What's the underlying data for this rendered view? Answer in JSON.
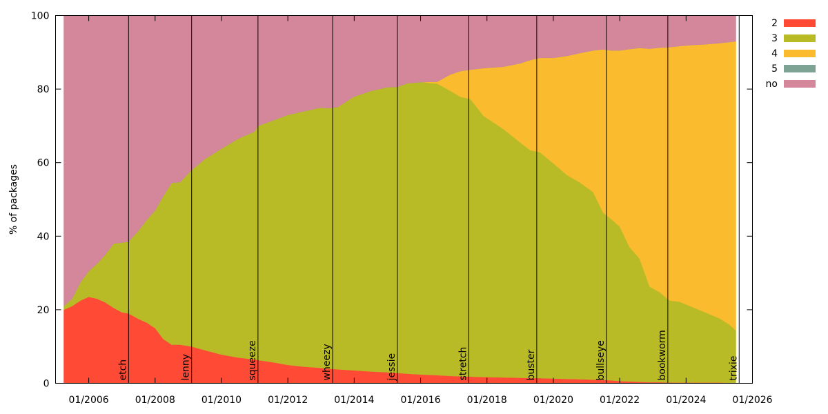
{
  "chart_data": {
    "type": "area",
    "stacked": true,
    "ylabel": "% of packages",
    "ylim": [
      0,
      100
    ],
    "yticks": [
      0,
      20,
      40,
      60,
      80,
      100
    ],
    "xlim": [
      2005.0,
      2026.0
    ],
    "xticks": [
      {
        "x": 2006,
        "label": "01/2006"
      },
      {
        "x": 2008,
        "label": "01/2008"
      },
      {
        "x": 2010,
        "label": "01/2010"
      },
      {
        "x": 2012,
        "label": "01/2012"
      },
      {
        "x": 2014,
        "label": "01/2014"
      },
      {
        "x": 2016,
        "label": "01/2016"
      },
      {
        "x": 2018,
        "label": "01/2018"
      },
      {
        "x": 2020,
        "label": "01/2020"
      },
      {
        "x": 2022,
        "label": "01/2022"
      },
      {
        "x": 2024,
        "label": "01/2024"
      },
      {
        "x": 2026,
        "label": "01/2026"
      }
    ],
    "x": [
      2005.25,
      2005.5,
      2005.75,
      2006.0,
      2006.25,
      2006.5,
      2006.75,
      2007.0,
      2007.2,
      2007.5,
      2007.75,
      2008.0,
      2008.25,
      2008.5,
      2008.75,
      2009.1,
      2009.5,
      2010.0,
      2010.5,
      2011.0,
      2011.1,
      2011.5,
      2012.0,
      2012.5,
      2013.0,
      2013.2,
      2013.5,
      2014.0,
      2014.5,
      2015.0,
      2015.3,
      2015.6,
      2016.0,
      2016.5,
      2016.9,
      2017.2,
      2017.5,
      2017.9,
      2018.5,
      2019.0,
      2019.3,
      2019.6,
      2020.0,
      2020.4,
      2020.8,
      2021.2,
      2021.5,
      2021.75,
      2022.0,
      2022.3,
      2022.6,
      2022.9,
      2023.2,
      2023.5,
      2023.8,
      2024.2,
      2024.6,
      2025.0,
      2025.3,
      2025.5
    ],
    "series": [
      {
        "name": "2",
        "color": "#ff4a35",
        "values": [
          20,
          21,
          22.5,
          23.5,
          23,
          22,
          20.5,
          19.3,
          19,
          17.5,
          16.5,
          15,
          12,
          10.5,
          10.5,
          10,
          9,
          7.8,
          7,
          6.5,
          6.3,
          5.8,
          5,
          4.5,
          4.2,
          4,
          3.8,
          3.5,
          3.2,
          3,
          2.8,
          2.6,
          2.4,
          2.2,
          2,
          1.9,
          1.8,
          1.7,
          1.6,
          1.5,
          1.4,
          1.4,
          1.3,
          1.2,
          1.1,
          1,
          0.9,
          0.8,
          0.6,
          0.5,
          0.4,
          0.3,
          0.3,
          0.2,
          0.2,
          0.2,
          0.2,
          0.2,
          0.1,
          0.1
        ]
      },
      {
        "name": "3",
        "color": "#b8ba26",
        "values": [
          1,
          2,
          5,
          7,
          9.5,
          13,
          17.5,
          19,
          19.5,
          24,
          28,
          32,
          39,
          44,
          44.2,
          48,
          52,
          56,
          59.5,
          62,
          63.7,
          65.5,
          68,
          69.5,
          70.8,
          70.8,
          71.3,
          74.5,
          76.3,
          77.5,
          77.8,
          79,
          79.5,
          79.3,
          77.5,
          76,
          75.5,
          71,
          67.5,
          64,
          62,
          61.4,
          58.5,
          55.5,
          53.5,
          51,
          45.5,
          43.8,
          42,
          36.5,
          33.5,
          26,
          24.5,
          22.3,
          22,
          20.5,
          19,
          17.5,
          15.9,
          14.3
        ]
      },
      {
        "name": "4",
        "color": "#fabb2e",
        "values": [
          0,
          0,
          0,
          0,
          0,
          0,
          0,
          0,
          0,
          0,
          0,
          0,
          0,
          0,
          0,
          0,
          0,
          0,
          0,
          0,
          0,
          0,
          0,
          0,
          0,
          0,
          0,
          0,
          0,
          0,
          0,
          0,
          0,
          0.5,
          4.5,
          7,
          8,
          13,
          17,
          21.5,
          24.5,
          25.7,
          28.7,
          32.3,
          35.2,
          38.5,
          44.4,
          45.9,
          47.9,
          53.9,
          57.3,
          64.7,
          66.5,
          68.9,
          69.5,
          71.3,
          73,
          74.8,
          76.8,
          78.6
        ]
      },
      {
        "name": "5",
        "color": "#7da394",
        "values": [
          0,
          0,
          0,
          0,
          0,
          0,
          0,
          0,
          0,
          0,
          0,
          0,
          0,
          0,
          0,
          0,
          0,
          0,
          0,
          0,
          0,
          0,
          0,
          0,
          0,
          0,
          0,
          0,
          0,
          0,
          0,
          0,
          0,
          0,
          0,
          0,
          0,
          0,
          0,
          0,
          0,
          0,
          0,
          0,
          0,
          0,
          0,
          0,
          0,
          0,
          0,
          0,
          0,
          0,
          0,
          0,
          0,
          0,
          0,
          0
        ]
      },
      {
        "name": "no",
        "color": "#d4869a",
        "values": [
          79,
          77,
          72.5,
          69.5,
          67.5,
          65,
          62,
          61.7,
          61.5,
          58.5,
          55.5,
          53,
          49,
          45.5,
          45.3,
          42,
          39,
          36.2,
          33.5,
          31.5,
          30,
          28.7,
          27,
          26,
          25,
          25.2,
          24.9,
          22,
          20.5,
          19.5,
          19.4,
          18.4,
          18.1,
          18,
          16,
          15.1,
          14.7,
          14.3,
          13.9,
          13,
          12.1,
          11.5,
          11.5,
          11,
          10.2,
          9.5,
          9.2,
          9.5,
          9.5,
          9.1,
          8.8,
          9,
          8.7,
          8.6,
          8.3,
          8,
          7.8,
          7.5,
          7.2,
          7
        ]
      }
    ],
    "releases": [
      {
        "name": "etch",
        "x": 2007.2
      },
      {
        "name": "lenny",
        "x": 2009.1
      },
      {
        "name": "squeeze",
        "x": 2011.1
      },
      {
        "name": "wheezy",
        "x": 2013.35
      },
      {
        "name": "jessie",
        "x": 2015.3
      },
      {
        "name": "stretch",
        "x": 2017.45
      },
      {
        "name": "buster",
        "x": 2019.5
      },
      {
        "name": "bullseye",
        "x": 2021.6
      },
      {
        "name": "bookworm",
        "x": 2023.45
      },
      {
        "name": "trixie",
        "x": 2025.6
      }
    ],
    "legend": {
      "placement": "top-right",
      "entries": [
        "2",
        "3",
        "4",
        "5",
        "no"
      ]
    },
    "grid": false
  }
}
